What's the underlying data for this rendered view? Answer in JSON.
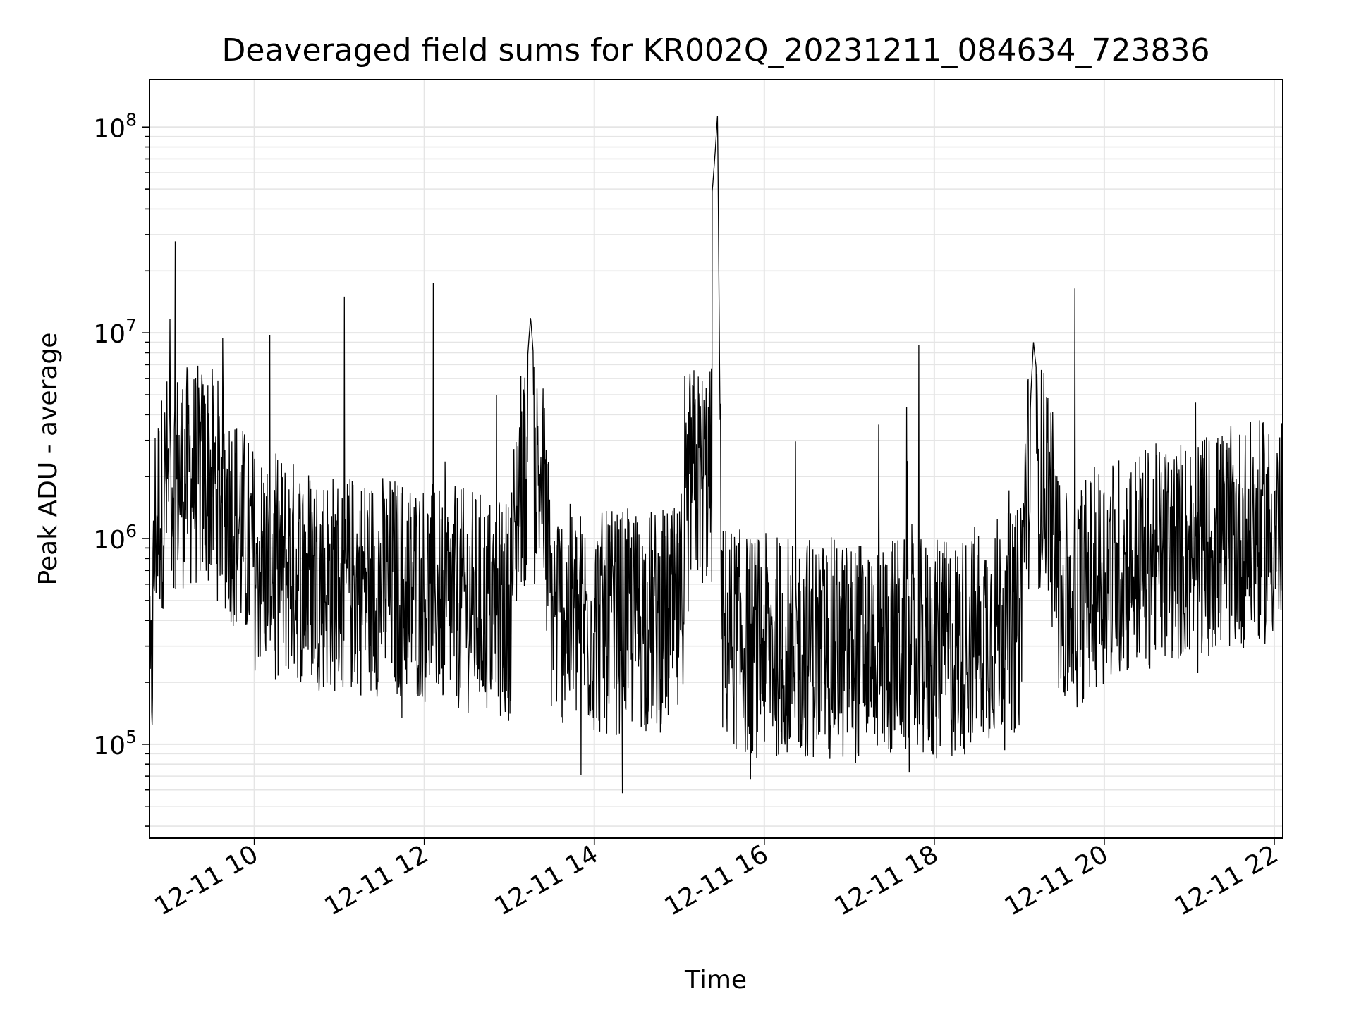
{
  "chart_data": {
    "type": "line",
    "title": "Deaveraged field sums for KR002Q_20231211_084634_723836",
    "xlabel": "Time",
    "ylabel": "Peak ADU - average",
    "x_range": [
      "2023-12-11 08:46",
      "2023-12-11 22:06"
    ],
    "xtick_labels": [
      "12-11 10",
      "12-11 12",
      "12-11 14",
      "12-11 16",
      "12-11 18",
      "12-11 20",
      "12-11 22"
    ],
    "y_scale": "log",
    "ylim": [
      35000,
      170000000
    ],
    "ytick_labels": [
      {
        "base": "10",
        "exp": "5",
        "value": 100000
      },
      {
        "base": "10",
        "exp": "6",
        "value": 1000000
      },
      {
        "base": "10",
        "exp": "7",
        "value": 10000000
      },
      {
        "base": "10",
        "exp": "8",
        "value": 100000000
      }
    ],
    "grid": true,
    "line_color": "#000000",
    "series": [
      {
        "x": [
          "2023-12-11 08:47",
          "2023-12-11 08:50",
          "2023-12-11 09:00",
          "2023-12-11 09:20",
          "2023-12-11 09:40",
          "2023-12-11 10:00",
          "2023-12-11 10:30",
          "2023-12-11 11:00",
          "2023-12-11 11:30",
          "2023-12-11 12:00",
          "2023-12-11 12:30",
          "2023-12-11 13:00",
          "2023-12-11 13:15",
          "2023-12-11 13:30",
          "2023-12-11 14:00",
          "2023-12-11 14:30",
          "2023-12-11 15:00",
          "2023-12-11 15:25",
          "2023-12-11 15:27",
          "2023-12-11 15:30",
          "2023-12-11 15:50",
          "2023-12-11 16:00",
          "2023-12-11 16:30",
          "2023-12-11 17:00",
          "2023-12-11 17:30",
          "2023-12-11 18:00",
          "2023-12-11 18:20",
          "2023-12-11 18:30",
          "2023-12-11 19:00",
          "2023-12-11 19:10",
          "2023-12-11 19:30",
          "2023-12-11 20:00",
          "2023-12-11 20:30",
          "2023-12-11 21:00",
          "2023-12-11 21:30",
          "2023-12-11 22:00"
        ],
        "y": [
          150000,
          1200000,
          2000000,
          2500000,
          1500000,
          800000,
          700000,
          600000,
          600000,
          550000,
          500000,
          450000,
          12000000,
          450000,
          380000,
          400000,
          400000,
          70000000,
          115000000,
          350000,
          300000,
          300000,
          300000,
          280000,
          300000,
          280000,
          300000,
          350000,
          400000,
          9000000,
          450000,
          700000,
          800000,
          900000,
          1000000,
          1100000
        ]
      }
    ]
  }
}
